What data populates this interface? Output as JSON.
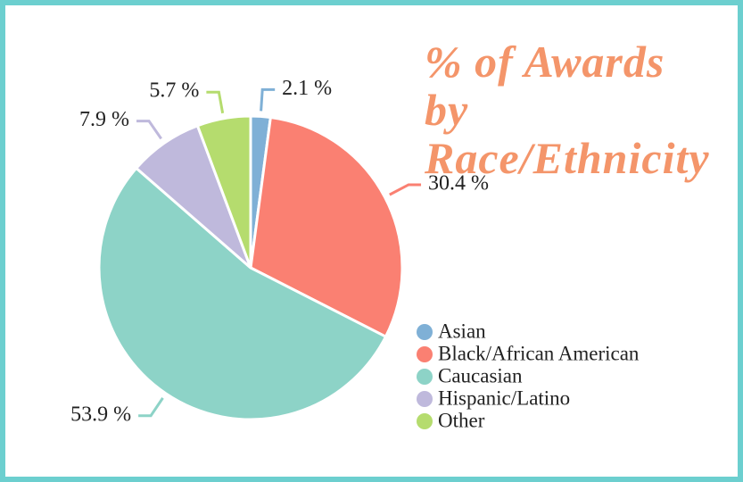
{
  "chart_data": {
    "type": "pie",
    "title": "% of Awards by Race/Ethnicity",
    "categories": [
      "Asian",
      "Black/African American",
      "Caucasian",
      "Hispanic/Latino",
      "Other"
    ],
    "values": [
      2.1,
      30.4,
      53.9,
      7.9,
      5.7
    ],
    "value_labels": [
      "2.1 %",
      "30.4 %",
      "53.9 %",
      "7.9 %",
      "5.7 %"
    ],
    "colors": [
      "#7fb0d6",
      "#fa8072",
      "#8dd3c7",
      "#bfb9dc",
      "#b5dc6e"
    ],
    "legend": "bottom-right"
  }
}
